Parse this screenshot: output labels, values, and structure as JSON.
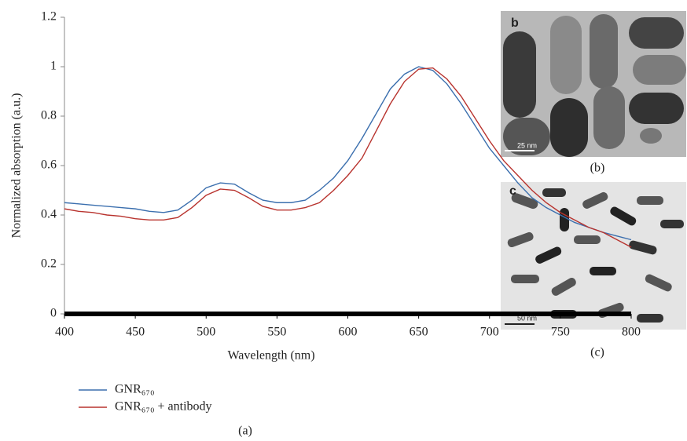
{
  "chart_data": {
    "type": "line",
    "x_label": "Wavelength (nm)",
    "y_label": "Normalized absorption (a.u.)",
    "x": [
      400,
      410,
      420,
      430,
      440,
      450,
      460,
      470,
      480,
      490,
      500,
      510,
      520,
      530,
      540,
      550,
      560,
      570,
      580,
      590,
      600,
      610,
      620,
      630,
      640,
      650,
      660,
      670,
      680,
      690,
      700,
      710,
      720,
      730,
      740,
      750,
      760,
      770,
      780,
      790,
      800
    ],
    "series": [
      {
        "name": "GNR₆₇₀",
        "color": "#3b6fae",
        "values": [
          0.45,
          0.445,
          0.44,
          0.435,
          0.43,
          0.425,
          0.415,
          0.41,
          0.42,
          0.46,
          0.51,
          0.53,
          0.525,
          0.49,
          0.46,
          0.45,
          0.45,
          0.46,
          0.5,
          0.55,
          0.62,
          0.71,
          0.81,
          0.91,
          0.97,
          1.0,
          0.985,
          0.93,
          0.85,
          0.76,
          0.67,
          0.6,
          0.53,
          0.47,
          0.43,
          0.4,
          0.37,
          0.35,
          0.33,
          0.315,
          0.3
        ]
      },
      {
        "name": "GNR₆₇₀ + antibody",
        "color": "#b8332e",
        "values": [
          0.425,
          0.415,
          0.41,
          0.4,
          0.395,
          0.385,
          0.38,
          0.38,
          0.39,
          0.43,
          0.48,
          0.505,
          0.5,
          0.47,
          0.435,
          0.42,
          0.42,
          0.43,
          0.45,
          0.5,
          0.56,
          0.63,
          0.74,
          0.85,
          0.94,
          0.99,
          0.995,
          0.95,
          0.88,
          0.79,
          0.7,
          0.62,
          0.56,
          0.5,
          0.45,
          0.41,
          0.38,
          0.35,
          0.33,
          0.3,
          0.27
        ]
      }
    ],
    "xlim": [
      400,
      800
    ],
    "xticks": [
      400,
      450,
      500,
      550,
      600,
      650,
      700,
      750,
      800
    ],
    "ylim": [
      0,
      1.2
    ],
    "yticks": [
      0,
      0.2,
      0.4,
      0.6,
      0.8,
      1,
      1.2
    ],
    "caption": "(a)"
  },
  "images": [
    {
      "letter": "b",
      "scale": "25 nm",
      "caption": "(b)"
    },
    {
      "letter": "c",
      "scale": "50 nm",
      "caption": "(c)"
    }
  ]
}
